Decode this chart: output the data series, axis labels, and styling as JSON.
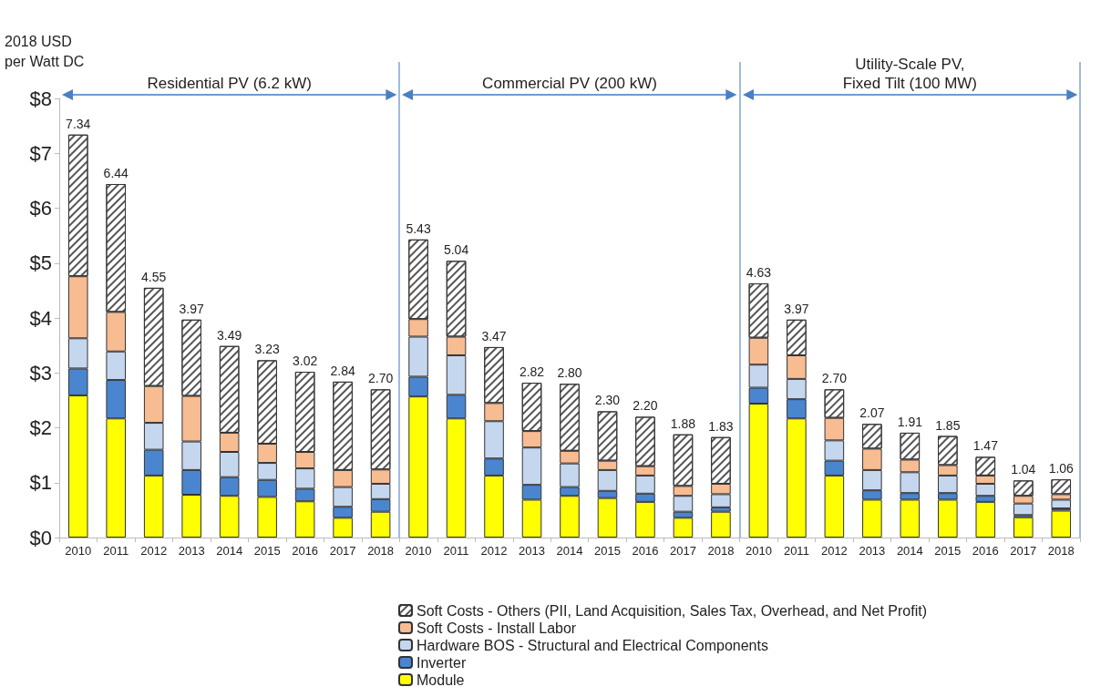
{
  "chart_data": {
    "type": "bar",
    "stacked": true,
    "ylabel": "2018 USD\nper Watt DC",
    "categories": [
      "2010",
      "2011",
      "2012",
      "2013",
      "2014",
      "2015",
      "2016",
      "2017",
      "2018",
      "2010",
      "2011",
      "2012",
      "2013",
      "2014",
      "2015",
      "2016",
      "2017",
      "2018",
      "2010",
      "2011",
      "2012",
      "2013",
      "2014",
      "2015",
      "2016",
      "2017",
      "2018"
    ],
    "series": [
      {
        "name": "Module",
        "color": "#ffff00",
        "values": [
          2.59,
          2.17,
          1.13,
          0.78,
          0.76,
          0.74,
          0.66,
          0.36,
          0.47,
          2.57,
          2.17,
          1.13,
          0.69,
          0.76,
          0.72,
          0.65,
          0.36,
          0.47,
          2.44,
          2.17,
          1.13,
          0.69,
          0.69,
          0.69,
          0.65,
          0.37,
          0.49
        ]
      },
      {
        "name": "Inverter",
        "color": "#4a86d0",
        "values": [
          0.49,
          0.7,
          0.47,
          0.45,
          0.34,
          0.31,
          0.23,
          0.2,
          0.23,
          0.36,
          0.43,
          0.31,
          0.27,
          0.16,
          0.13,
          0.15,
          0.11,
          0.08,
          0.29,
          0.35,
          0.27,
          0.17,
          0.12,
          0.12,
          0.11,
          0.04,
          0.04
        ]
      },
      {
        "name": "Hardware BOS - Structural and Electrical Components",
        "color": "#c5d7ef",
        "values": [
          0.55,
          0.52,
          0.49,
          0.52,
          0.46,
          0.31,
          0.37,
          0.36,
          0.28,
          0.73,
          0.72,
          0.68,
          0.68,
          0.43,
          0.38,
          0.33,
          0.29,
          0.24,
          0.42,
          0.37,
          0.37,
          0.37,
          0.38,
          0.32,
          0.22,
          0.21,
          0.16
        ]
      },
      {
        "name": "Soft Costs - Install Labor",
        "color": "#f8bc92",
        "values": [
          1.13,
          0.72,
          0.67,
          0.83,
          0.35,
          0.35,
          0.3,
          0.31,
          0.26,
          0.32,
          0.34,
          0.33,
          0.3,
          0.23,
          0.17,
          0.17,
          0.18,
          0.19,
          0.49,
          0.43,
          0.41,
          0.39,
          0.23,
          0.19,
          0.15,
          0.14,
          0.1
        ]
      },
      {
        "name": "Soft Costs - Others (PII, Land Acquisition, Sales Tax, Overhead, and Net Profit)",
        "color": "#ffffff",
        "values": [
          2.58,
          2.33,
          1.79,
          1.39,
          1.58,
          1.52,
          1.46,
          1.61,
          1.46,
          1.45,
          1.38,
          1.02,
          0.88,
          1.22,
          0.9,
          0.9,
          0.94,
          0.85,
          0.99,
          0.65,
          0.52,
          0.45,
          0.49,
          0.53,
          0.34,
          0.28,
          0.27
        ]
      }
    ],
    "totals": [
      "7.34",
      "6.44",
      "4.55",
      "3.97",
      "3.49",
      "3.23",
      "3.02",
      "2.84",
      "2.70",
      "5.43",
      "5.04",
      "3.47",
      "2.82",
      "2.80",
      "2.30",
      "2.20",
      "1.88",
      "1.83",
      "4.63",
      "3.97",
      "2.70",
      "2.07",
      "1.91",
      "1.85",
      "1.47",
      "1.04",
      "1.06"
    ],
    "ylim": [
      0,
      8
    ],
    "yticks": [
      {
        "value": 0,
        "label": "$0"
      },
      {
        "value": 1,
        "label": "$1"
      },
      {
        "value": 2,
        "label": "$2"
      },
      {
        "value": 3,
        "label": "$3"
      },
      {
        "value": 4,
        "label": "$4"
      },
      {
        "value": 5,
        "label": "$5"
      },
      {
        "value": 6,
        "label": "$6"
      },
      {
        "value": 7,
        "label": "$7"
      },
      {
        "value": 8,
        "label": "$8"
      }
    ],
    "annotations": [
      "Residential PV (6.2 kW)",
      "Commercial PV (200 kW)",
      "Utility-Scale PV,\nFixed Tilt (100 MW)"
    ],
    "grid": false,
    "legend": "bottom"
  }
}
